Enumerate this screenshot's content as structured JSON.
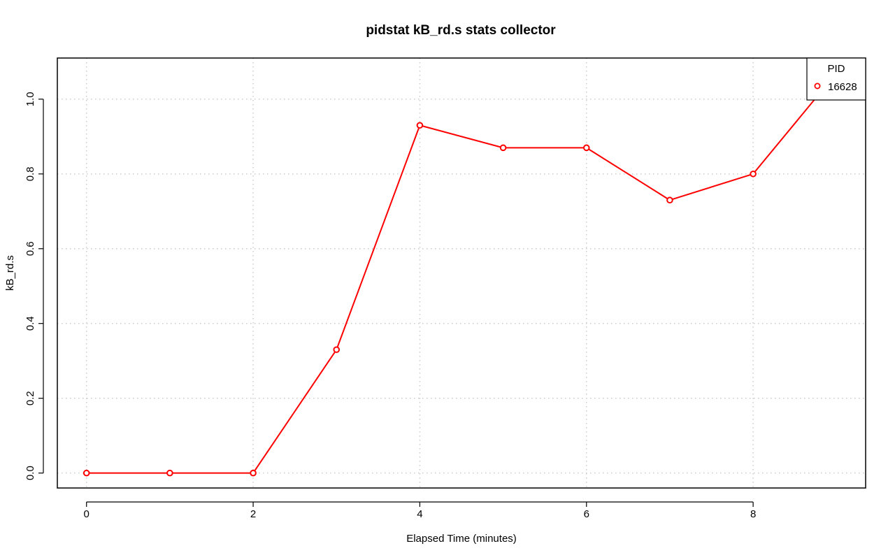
{
  "chart_data": {
    "type": "line",
    "title": "pidstat kB_rd.s stats collector",
    "xlabel": "Elapsed Time (minutes)",
    "ylabel": "kB_rd.s",
    "xlim": [
      -0.35,
      9.35
    ],
    "ylim": [
      -0.04,
      1.11
    ],
    "x_ticks": [
      0,
      2,
      4,
      6,
      8
    ],
    "y_ticks": [
      0.0,
      0.2,
      0.4,
      0.6,
      0.8,
      1.0
    ],
    "x_tick_labels": [
      "0",
      "2",
      "4",
      "6",
      "8"
    ],
    "y_tick_labels": [
      "0.0",
      "0.2",
      "0.4",
      "0.6",
      "0.8",
      "1.0"
    ],
    "grid": true,
    "legend": {
      "title": "PID",
      "placement": "top-right"
    },
    "series": [
      {
        "name": "16628",
        "color": "#ff0000",
        "marker": "open-circle",
        "x": [
          0,
          1,
          2,
          3,
          4,
          5,
          6,
          7,
          8,
          9
        ],
        "y": [
          0.0,
          0.0,
          0.0,
          0.33,
          0.93,
          0.87,
          0.87,
          0.73,
          0.8,
          1.07
        ]
      }
    ]
  }
}
